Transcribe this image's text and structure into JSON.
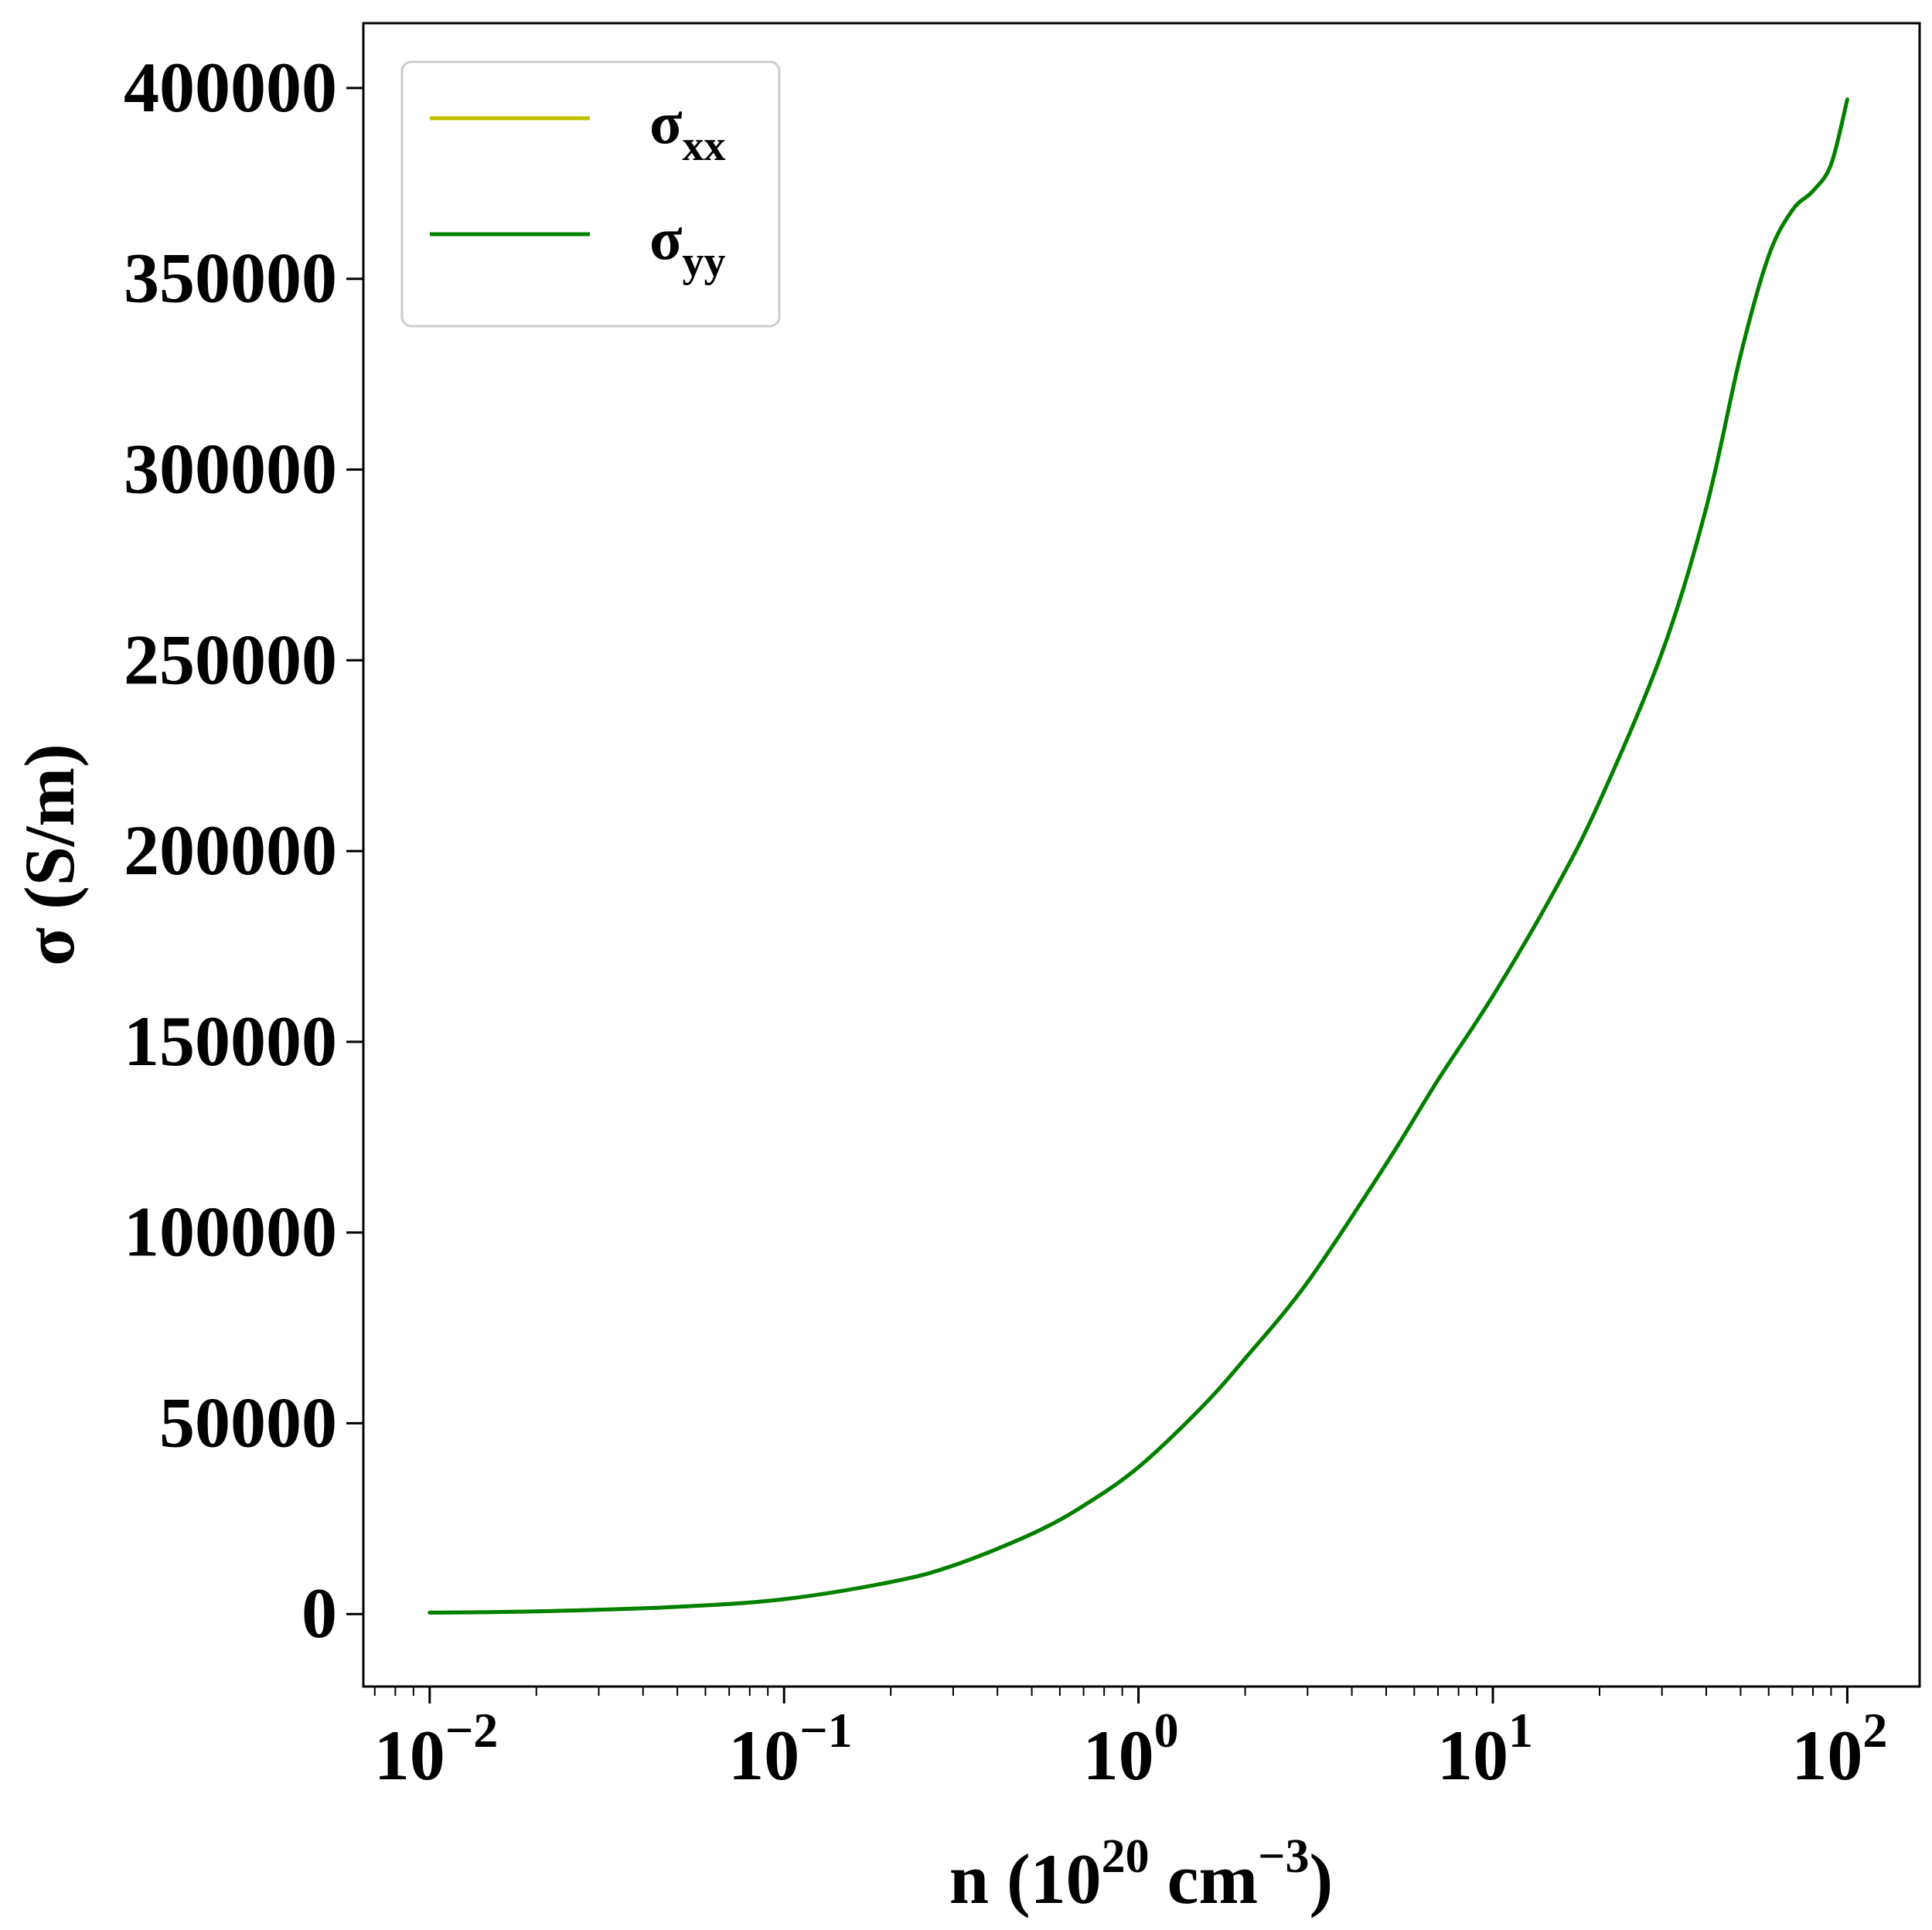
{
  "chart_data": {
    "type": "line",
    "xlabel": "n (10",
    "xlabel_sup1": "20",
    "xlabel_mid": " cm",
    "xlabel_sup2": "−3",
    "xlabel_end": ")",
    "ylabel": "σ (S/m)",
    "x_scale": "log",
    "xlim": [
      0.0065,
      160
    ],
    "ylim": [
      -19000,
      417000
    ],
    "grid": false,
    "legend_position": "top-left",
    "x_ticks": [
      {
        "value": 0.01,
        "base": "10",
        "exp": "−2"
      },
      {
        "value": 0.1,
        "base": "10",
        "exp": "−1"
      },
      {
        "value": 1,
        "base": "10",
        "exp": "0"
      },
      {
        "value": 10,
        "base": "10",
        "exp": "1"
      },
      {
        "value": 100,
        "base": "10",
        "exp": "2"
      }
    ],
    "y_ticks": [
      {
        "value": 0,
        "label": "0"
      },
      {
        "value": 50000,
        "label": "50000"
      },
      {
        "value": 100000,
        "label": "100000"
      },
      {
        "value": 150000,
        "label": "150000"
      },
      {
        "value": 200000,
        "label": "200000"
      },
      {
        "value": 250000,
        "label": "250000"
      },
      {
        "value": 300000,
        "label": "300000"
      },
      {
        "value": 350000,
        "label": "350000"
      },
      {
        "value": 400000,
        "label": "400000"
      }
    ],
    "series": [
      {
        "name": "σxx",
        "label_base": "σ",
        "label_sub": "xx",
        "color": "#bfbf00",
        "x": [
          0.01,
          0.02,
          0.05,
          0.1,
          0.2,
          0.3,
          0.5,
          0.7,
          1,
          1.5,
          2,
          3,
          5,
          7,
          10,
          15,
          20,
          30,
          40,
          50,
          60,
          70,
          80,
          90,
          100
        ],
        "y": [
          370,
          700,
          1900,
          3900,
          8400,
          12700,
          21000,
          28400,
          38500,
          54000,
          67000,
          87000,
          118000,
          140000,
          162000,
          190000,
          213000,
          252000,
          290000,
          330000,
          356000,
          368000,
          373000,
          380000,
          397000
        ]
      },
      {
        "name": "σyy",
        "label_base": "σ",
        "label_sub": "yy",
        "color": "#008000",
        "x": [
          0.01,
          0.02,
          0.05,
          0.1,
          0.2,
          0.3,
          0.5,
          0.7,
          1,
          1.5,
          2,
          3,
          5,
          7,
          10,
          15,
          20,
          30,
          40,
          50,
          60,
          70,
          80,
          90,
          100
        ],
        "y": [
          370,
          700,
          1900,
          3900,
          8400,
          12700,
          21000,
          28400,
          38500,
          54000,
          67000,
          87000,
          118000,
          140000,
          162000,
          190000,
          213000,
          252000,
          290000,
          330000,
          356000,
          368000,
          373000,
          380000,
          397000
        ]
      }
    ]
  }
}
